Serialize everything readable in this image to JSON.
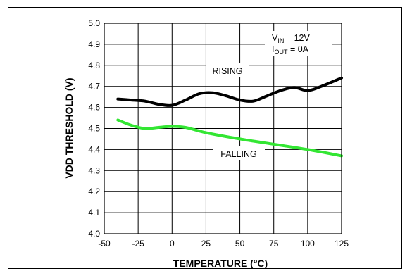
{
  "chart_data": {
    "type": "line",
    "xlabel": "TEMPERATURE (°C)",
    "ylabel": "VDD THRESHOLD (V)",
    "xlim": [
      -50,
      125
    ],
    "ylim": [
      4.0,
      5.0
    ],
    "x_ticks": [
      "-50",
      "-25",
      "0",
      "25",
      "50",
      "75",
      "100",
      "125"
    ],
    "y_ticks": [
      "4.0",
      "4.1",
      "4.2",
      "4.3",
      "4.4",
      "4.5",
      "4.6",
      "4.7",
      "4.8",
      "4.9",
      "5.0"
    ],
    "grid": true,
    "series": [
      {
        "name": "RISING",
        "color": "#000000",
        "x": [
          -40,
          -30,
          -20,
          -10,
          0,
          10,
          20,
          30,
          40,
          50,
          60,
          70,
          80,
          90,
          100,
          110,
          125
        ],
        "y": [
          4.64,
          4.635,
          4.63,
          4.615,
          4.61,
          4.635,
          4.665,
          4.67,
          4.655,
          4.635,
          4.63,
          4.655,
          4.68,
          4.695,
          4.68,
          4.7,
          4.74
        ]
      },
      {
        "name": "FALLING",
        "color": "#33e633",
        "x": [
          -40,
          -30,
          -20,
          -10,
          0,
          10,
          25,
          50,
          75,
          100,
          125
        ],
        "y": [
          4.54,
          4.515,
          4.5,
          4.505,
          4.51,
          4.505,
          4.48,
          4.45,
          4.425,
          4.4,
          4.37
        ]
      }
    ],
    "annotations": {
      "vin": {
        "main": "V",
        "sub": "IN",
        "rest": " = 12V"
      },
      "iout": {
        "main": "I",
        "sub": "OUT",
        "rest": " =  0A"
      }
    }
  }
}
